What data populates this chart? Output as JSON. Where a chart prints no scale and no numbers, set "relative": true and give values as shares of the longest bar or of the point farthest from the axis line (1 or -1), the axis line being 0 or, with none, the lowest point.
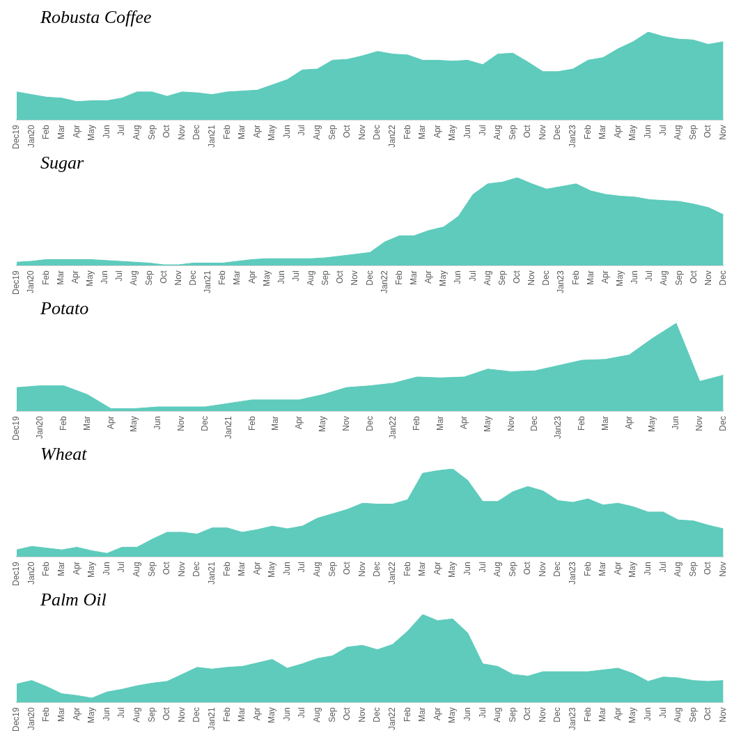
{
  "chart_data": [
    {
      "type": "area",
      "title": "Robusta Coffee",
      "relative": true,
      "categories": [
        "Dec19",
        "Jan20",
        "Feb",
        "Mar",
        "Apr",
        "May",
        "Jun",
        "Jul",
        "Aug",
        "Sep",
        "Oct",
        "Nov",
        "Dec",
        "Jan21",
        "Feb",
        "Mar",
        "Apr",
        "May",
        "Jun",
        "Jul",
        "Aug",
        "Sep",
        "Oct",
        "Nov",
        "Dec",
        "Jan22",
        "Feb",
        "Mar",
        "Apr",
        "May",
        "Jun",
        "Jul",
        "Aug",
        "Sep",
        "Oct",
        "Nov",
        "Dec",
        "Jan23",
        "Feb",
        "Mar",
        "Apr",
        "May",
        "Jun",
        "Jul",
        "Aug",
        "Sep",
        "Oct",
        "Nov"
      ],
      "series": [
        {
          "color": "#5ecbbc",
          "values": [
            0.32,
            0.29,
            0.26,
            0.25,
            0.21,
            0.22,
            0.22,
            0.25,
            0.32,
            0.32,
            0.27,
            0.32,
            0.31,
            0.29,
            0.32,
            0.33,
            0.34,
            0.4,
            0.46,
            0.57,
            0.58,
            0.68,
            0.69,
            0.73,
            0.78,
            0.75,
            0.74,
            0.68,
            0.68,
            0.67,
            0.68,
            0.63,
            0.75,
            0.76,
            0.66,
            0.55,
            0.55,
            0.58,
            0.68,
            0.71,
            0.81,
            0.89,
            1,
            0.95,
            0.92,
            0.91,
            0.86,
            0.89
          ]
        }
      ]
    },
    {
      "type": "area",
      "title": "Sugar",
      "relative": true,
      "categories": [
        "Dec19",
        "Jan20",
        "Feb",
        "Mar",
        "Apr",
        "May",
        "Jun",
        "Jul",
        "Aug",
        "Sep",
        "Oct",
        "Nov",
        "Dec",
        "Jan21",
        "Feb",
        "Mar",
        "Apr",
        "May",
        "Jun",
        "Jul",
        "Aug",
        "Sep",
        "Oct",
        "Nov",
        "Dec",
        "Jan22",
        "Feb",
        "Mar",
        "Apr",
        "May",
        "Jun",
        "Jul",
        "Aug",
        "Sep",
        "Oct",
        "Nov",
        "Dec",
        "Jan23",
        "Feb",
        "Mar",
        "Apr",
        "May",
        "Jun",
        "Jul",
        "Aug",
        "Sep",
        "Oct",
        "Nov",
        "Dec"
      ],
      "series": [
        {
          "color": "#5ecbbc",
          "values": [
            0.04,
            0.05,
            0.07,
            0.07,
            0.07,
            0.07,
            0.06,
            0.05,
            0.04,
            0.03,
            0.01,
            0.01,
            0.03,
            0.03,
            0.03,
            0.05,
            0.07,
            0.08,
            0.08,
            0.08,
            0.08,
            0.09,
            0.11,
            0.13,
            0.15,
            0.27,
            0.34,
            0.34,
            0.4,
            0.44,
            0.56,
            0.81,
            0.93,
            0.95,
            1,
            0.93,
            0.87,
            0.9,
            0.93,
            0.85,
            0.81,
            0.79,
            0.78,
            0.75,
            0.74,
            0.73,
            0.7,
            0.66,
            0.58
          ]
        }
      ]
    },
    {
      "type": "area",
      "title": "Potato",
      "relative": true,
      "categories": [
        "Dec19",
        "Jan20",
        "Feb",
        "Mar",
        "Apr",
        "May",
        "Jun",
        "Nov",
        "Dec",
        "Jan21",
        "Feb",
        "Mar",
        "Apr",
        "May",
        "Nov",
        "Dec",
        "Jan22",
        "Feb",
        "Mar",
        "Apr",
        "May",
        "Nov",
        "Dec",
        "Jan23",
        "Feb",
        "Mar",
        "Apr",
        "May",
        "Jun",
        "Nov",
        "Dec"
      ],
      "series": [
        {
          "color": "#5ecbbc",
          "values": [
            0.27,
            0.29,
            0.29,
            0.19,
            0.03,
            0.03,
            0.05,
            0.05,
            0.05,
            0.09,
            0.13,
            0.13,
            0.13,
            0.19,
            0.27,
            0.29,
            0.32,
            0.39,
            0.38,
            0.39,
            0.48,
            0.45,
            0.46,
            0.52,
            0.58,
            0.59,
            0.64,
            0.83,
            1,
            0.34,
            0.41
          ]
        }
      ]
    },
    {
      "type": "area",
      "title": "Wheat",
      "relative": true,
      "categories": [
        "Dec19",
        "Jan20",
        "Feb",
        "Mar",
        "Apr",
        "May",
        "Jun",
        "Jul",
        "Aug",
        "Sep",
        "Oct",
        "Nov",
        "Dec",
        "Jan21",
        "Feb",
        "Mar",
        "Apr",
        "May",
        "Jun",
        "Jul",
        "Aug",
        "Sep",
        "Oct",
        "Nov",
        "Dec",
        "Jan22",
        "Feb",
        "Mar",
        "Apr",
        "May",
        "Jun",
        "Jul",
        "Aug",
        "Sep",
        "Oct",
        "Nov",
        "Dec",
        "Jan23",
        "Feb",
        "Mar",
        "Apr",
        "May",
        "Jun",
        "Jul",
        "Aug",
        "Sep",
        "Oct",
        "Nov"
      ],
      "series": [
        {
          "color": "#5ecbbc",
          "values": [
            0.08,
            0.12,
            0.1,
            0.08,
            0.11,
            0.07,
            0.04,
            0.11,
            0.11,
            0.2,
            0.28,
            0.28,
            0.26,
            0.33,
            0.33,
            0.28,
            0.31,
            0.35,
            0.32,
            0.35,
            0.44,
            0.49,
            0.54,
            0.61,
            0.6,
            0.6,
            0.65,
            0.95,
            0.98,
            1,
            0.87,
            0.63,
            0.63,
            0.74,
            0.8,
            0.75,
            0.64,
            0.62,
            0.66,
            0.59,
            0.61,
            0.57,
            0.51,
            0.51,
            0.42,
            0.41,
            0.36,
            0.32
          ]
        }
      ]
    },
    {
      "type": "area",
      "title": "Palm Oil",
      "relative": true,
      "categories": [
        "Dec19",
        "Jan20",
        "Feb",
        "Mar",
        "Apr",
        "May",
        "Jun",
        "Jul",
        "Aug",
        "Sep",
        "Oct",
        "Nov",
        "Dec",
        "Jan21",
        "Feb",
        "Mar",
        "Apr",
        "May",
        "Jun",
        "Jul",
        "Aug",
        "Sep",
        "Oct",
        "Nov",
        "Dec",
        "Jan22",
        "Feb",
        "Mar",
        "Apr",
        "May",
        "Jun",
        "Jul",
        "Aug",
        "Sep",
        "Oct",
        "Nov",
        "Dec",
        "Jan23",
        "Feb",
        "Mar",
        "Apr",
        "May",
        "Jun",
        "Jul",
        "Aug",
        "Sep",
        "Oct",
        "Nov"
      ],
      "series": [
        {
          "color": "#5ecbbc",
          "values": [
            0.21,
            0.25,
            0.18,
            0.1,
            0.08,
            0.05,
            0.12,
            0.15,
            0.19,
            0.22,
            0.24,
            0.32,
            0.4,
            0.38,
            0.4,
            0.41,
            0.45,
            0.49,
            0.39,
            0.44,
            0.5,
            0.53,
            0.63,
            0.65,
            0.6,
            0.66,
            0.81,
            1,
            0.93,
            0.95,
            0.79,
            0.44,
            0.41,
            0.32,
            0.3,
            0.35,
            0.35,
            0.35,
            0.35,
            0.37,
            0.39,
            0.33,
            0.24,
            0.29,
            0.28,
            0.25,
            0.24,
            0.25
          ]
        }
      ]
    }
  ]
}
